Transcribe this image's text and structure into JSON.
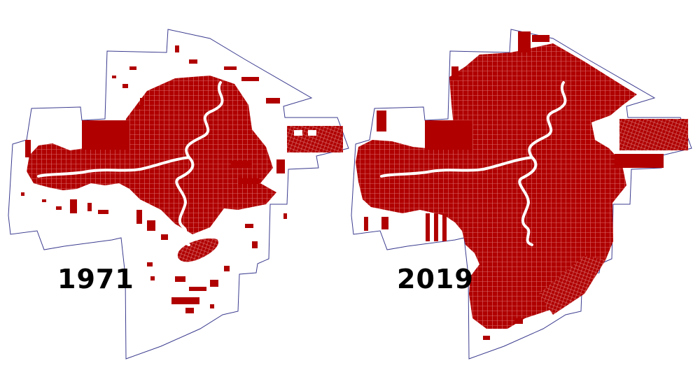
{
  "maps": [
    {
      "year": "1971",
      "coverage": "partial"
    },
    {
      "year": "2019",
      "coverage": "full"
    }
  ],
  "colors": {
    "background": "#ffffff",
    "urban_fill": "#b00000",
    "boundary_stroke": "#3b3b8f",
    "river": "#ffffff",
    "label_text": "#000000"
  }
}
